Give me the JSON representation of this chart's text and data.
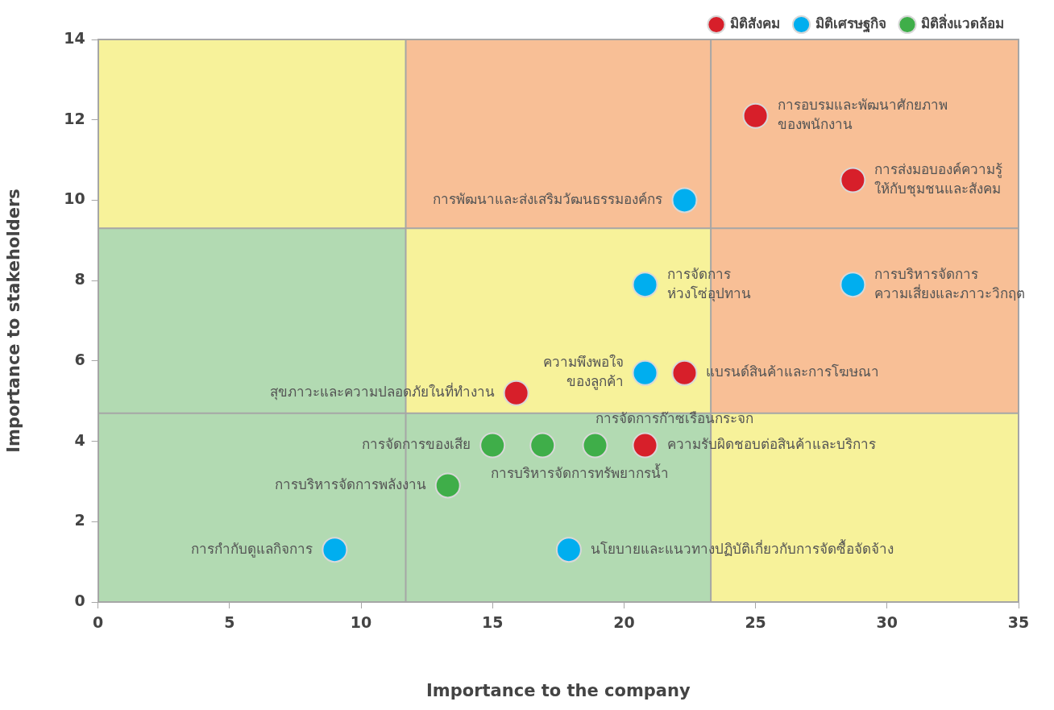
{
  "chart_data": {
    "type": "scatter",
    "xlabel": "Importance to the company",
    "ylabel": "Importance to stakeholders",
    "xlim": [
      0,
      35
    ],
    "xticks": [
      0,
      5,
      10,
      15,
      20,
      25,
      30,
      35
    ],
    "ylim": [
      0,
      14
    ],
    "yticks": [
      0,
      2,
      4,
      6,
      8,
      10,
      12,
      14
    ],
    "grid": false,
    "ref_lines": [
      {
        "axis": "x",
        "value": 11.7,
        "color": "#a6a6a6"
      },
      {
        "axis": "x",
        "value": 23.3,
        "color": "#a6a6a6"
      },
      {
        "axis": "y",
        "value": 4.7,
        "color": "#a6a6a6"
      },
      {
        "axis": "y",
        "value": 9.3,
        "color": "#a6a6a6"
      }
    ],
    "legend": "top right",
    "marker": "circle",
    "series": [
      {
        "name": "มิติสังคม",
        "color": "#d71f2a",
        "x": [
          25,
          28.7,
          22.3,
          15.9,
          20.8
        ],
        "values": [
          12.1,
          10.5,
          5.7,
          5.2,
          3.9
        ]
      },
      {
        "name": "มิติเศรษฐกิจ",
        "color": "#00aeef",
        "x": [
          22.3,
          20.8,
          28.7,
          20.8,
          9,
          17.9
        ],
        "values": [
          10,
          7.9,
          7.9,
          5.7,
          1.3,
          1.3
        ]
      },
      {
        "name": "มิติสิ่งแวดล้อม",
        "color": "#3fae49",
        "x": [
          15,
          16.9,
          18.9,
          13.3
        ],
        "values": [
          3.9,
          3.9,
          3.9,
          2.9
        ]
      }
    ],
    "annotations": [
      {
        "text": "การอบรมและพัฒนาศักยภาพ\nของพนักงาน",
        "x": 25,
        "y": 12.1
      },
      {
        "text": "การส่งมอบองค์ความรู้\nให้กับชุมชนและสังคม",
        "x": 28.7,
        "y": 10.5
      },
      {
        "text": "แบรนด์สินค้าและการโฆษณา",
        "x": 22.3,
        "y": 5.7
      },
      {
        "text": "สุขภาวะและความปลอดภัยในที่ทำงาน",
        "x": 15.9,
        "y": 5.2
      },
      {
        "text": "ความรับผิดชอบต่อสินค้าและบริการ",
        "x": 20.8,
        "y": 3.9
      },
      {
        "text": "การพัฒนาและส่งเสริมวัฒนธรรมองค์กร",
        "x": 22.3,
        "y": 10
      },
      {
        "text": "การจัดการ\nห่วงโซ่อุปทาน",
        "x": 20.8,
        "y": 7.9
      },
      {
        "text": "การบริหารจัดการ\nความเสี่ยงและภาวะวิกฤต",
        "x": 28.7,
        "y": 7.9
      },
      {
        "text": "ความพึงพอใจ\nของลูกค้า",
        "x": 20.8,
        "y": 5.7
      },
      {
        "text": "การกำกับดูแลกิจการ",
        "x": 9,
        "y": 1.3
      },
      {
        "text": "นโยบายและแนวทางปฏิบัติเกี่ยวกับการจัดซื้อจัดจ้าง",
        "x": 17.9,
        "y": 1.3
      },
      {
        "text": "การจัดการของเสีย",
        "x": 15,
        "y": 3.9
      },
      {
        "text": "การจัดการก๊าซเรือนกระจก",
        "x": 18.9,
        "y": 3.9
      },
      {
        "text": "การบริหารจัดการทรัพยากรน้ำ",
        "x": 16.9,
        "y": 3.9
      },
      {
        "text": "การบริหารจัดการพลังงาน",
        "x": 13.3,
        "y": 2.9
      }
    ]
  }
}
